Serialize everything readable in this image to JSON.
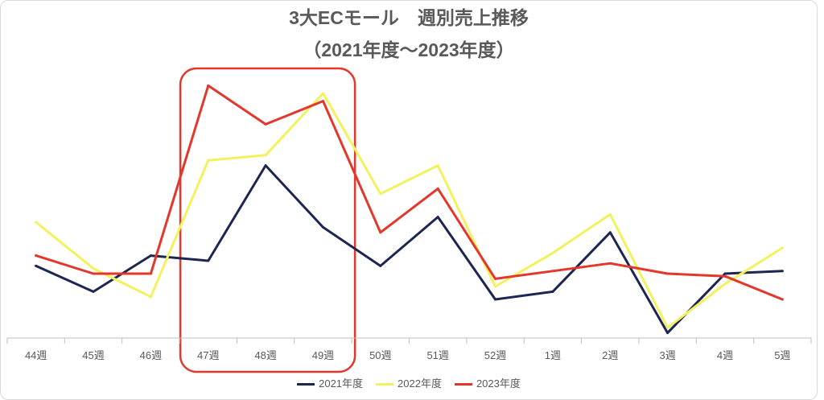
{
  "chart_data": {
    "type": "line",
    "title": "3大ECモール　週別売上推移",
    "subtitle": "（2021年度〜2023年度）",
    "xlabel": "",
    "ylabel": "",
    "categories": [
      "44週",
      "45週",
      "46週",
      "47週",
      "48週",
      "49週",
      "50週",
      "51週",
      "52週",
      "1週",
      "2週",
      "3週",
      "4週",
      "5週"
    ],
    "series": [
      {
        "name": "2021年度",
        "color": "#1d2651",
        "values": [
          28,
          18,
          32,
          30,
          67,
          43,
          28,
          47,
          15,
          18,
          41,
          2,
          25,
          26
        ]
      },
      {
        "name": "2022年度",
        "color": "#f2f25e",
        "values": [
          45,
          27,
          16,
          69,
          71,
          95,
          56,
          67,
          20,
          33,
          48,
          4,
          21,
          35
        ]
      },
      {
        "name": "2023年度",
        "color": "#e3372b",
        "values": [
          32,
          25,
          25,
          98,
          83,
          92,
          41,
          58,
          23,
          26,
          29,
          25,
          24,
          15
        ]
      }
    ],
    "ylim": [
      0,
      100
    ],
    "grid": false,
    "legend": "bottom",
    "highlight": {
      "start_index": 3,
      "end_index": 5,
      "color": "#e3372b"
    }
  }
}
